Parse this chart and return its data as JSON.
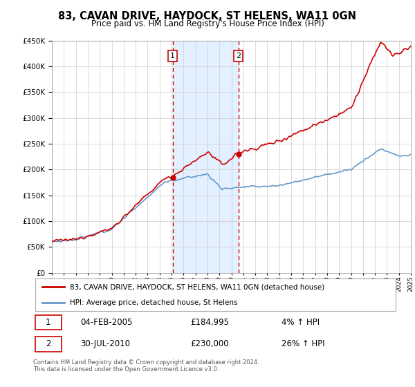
{
  "title": "83, CAVAN DRIVE, HAYDOCK, ST HELENS, WA11 0GN",
  "subtitle": "Price paid vs. HM Land Registry's House Price Index (HPI)",
  "ylim": [
    0,
    450000
  ],
  "yticks": [
    0,
    50000,
    100000,
    150000,
    200000,
    250000,
    300000,
    350000,
    400000,
    450000
  ],
  "sale1_year": 2005.09,
  "sale1_price": 184995,
  "sale1_date": "04-FEB-2005",
  "sale1_hpi": "4% ↑ HPI",
  "sale2_year": 2010.58,
  "sale2_price": 230000,
  "sale2_date": "30-JUL-2010",
  "sale2_hpi": "26% ↑ HPI",
  "hpi_color": "#6699cc",
  "price_color": "#cc0000",
  "shade_color": "#ddeeff",
  "vline_color": "#cc0000",
  "legend_label_price": "83, CAVAN DRIVE, HAYDOCK, ST HELENS, WA11 0GN (detached house)",
  "legend_label_hpi": "HPI: Average price, detached house, St Helens",
  "footer": "Contains HM Land Registry data © Crown copyright and database right 2024.\nThis data is licensed under the Open Government Licence v3.0.",
  "xstart": 1995,
  "xend": 2025
}
